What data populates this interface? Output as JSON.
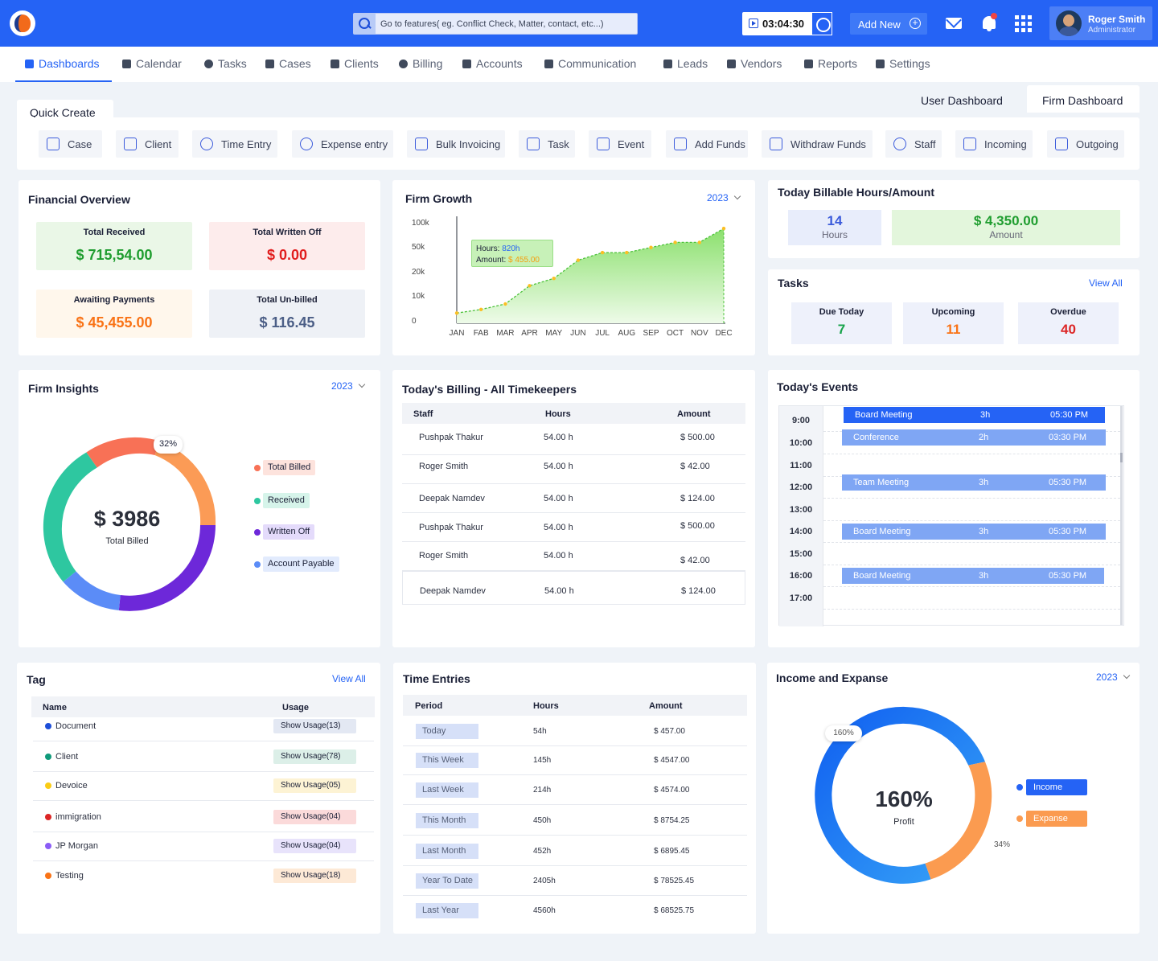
{
  "header": {
    "search_placeholder": "Go to features( eg. Conflict Check, Matter, contact, etc...)",
    "timer": "03:04:30",
    "add_new": "Add New",
    "user_name": "Roger Smith",
    "user_role": "Administrator"
  },
  "nav": {
    "items": [
      "Dashboards",
      "Calendar",
      "Tasks",
      "Cases",
      "Clients",
      "Billing",
      "Accounts",
      "Communication",
      "Leads",
      "Vendors",
      "Reports",
      "Settings"
    ]
  },
  "dashboard_tabs": {
    "user": "User Dashboard",
    "firm": "Firm Dashboard"
  },
  "quick_create": {
    "title": "Quick Create",
    "buttons": [
      "Case",
      "Client",
      "Time Entry",
      "Expense entry",
      "Bulk Invoicing",
      "Task",
      "Event",
      "Add Funds",
      "Withdraw Funds",
      "Staff",
      "Incoming",
      "Outgoing"
    ]
  },
  "financial": {
    "title": "Financial Overview",
    "boxes": [
      {
        "label": "Total Received",
        "value": "$ 715,54.00",
        "color": "#1f9d2f",
        "bg": "#eaf7e7"
      },
      {
        "label": "Total Written Off",
        "value": "$ 0.00",
        "color": "#e11d1d",
        "bg": "#fdecec"
      },
      {
        "label": "Awaiting Payments",
        "value": "$ 45,455.00",
        "color": "#f97316",
        "bg": "#fff7ec"
      },
      {
        "label": "Total Un-billed",
        "value": "$ 116.45",
        "color": "#4b5e86",
        "bg": "#eef1f6"
      }
    ]
  },
  "firm_growth": {
    "title": "Firm Growth",
    "year": "2023",
    "tooltip_hours_label": "Hours:",
    "tooltip_hours": "820h",
    "tooltip_amount_label": "Amount:",
    "tooltip_amount": "$ 455.00"
  },
  "chart_data": {
    "type": "area",
    "title": "Firm Growth",
    "y_ticks": [
      "100k",
      "50k",
      "20k",
      "10k",
      "0"
    ],
    "categories": [
      "JAN",
      "FAB",
      "MAR",
      "APR",
      "MAY",
      "JUN",
      "JUL",
      "AUG",
      "SEP",
      "OCT",
      "NOV",
      "DEC"
    ],
    "values": [
      2.8,
      3.8,
      5.3,
      10.3,
      12.3,
      17.3,
      19.4,
      19.4,
      20.8,
      22.2,
      22.2,
      26.0
    ],
    "ylim": [
      0,
      30
    ]
  },
  "billable": {
    "title": "Today Billable Hours/Amount",
    "hours": "14",
    "hours_label": "Hours",
    "amount": "$ 4,350.00",
    "amount_label": "Amount"
  },
  "tasks": {
    "title": "Tasks",
    "view_all": "View All",
    "boxes": [
      {
        "label": "Due Today",
        "value": "7",
        "color": "#16a34a"
      },
      {
        "label": "Upcoming",
        "value": "11",
        "color": "#f97316"
      },
      {
        "label": "Overdue",
        "value": "40",
        "color": "#dc2626"
      }
    ]
  },
  "insights": {
    "title": "Firm Insights",
    "year": "2023",
    "center_value": "$ 3986",
    "center_label": "Total Billed",
    "badge": "32%",
    "legend": [
      {
        "label": "Total Billed",
        "dot": "#f87156",
        "bg": "#fde3dd"
      },
      {
        "label": "Received",
        "dot": "#2ec7a0",
        "bg": "#d6f4ea"
      },
      {
        "label": "Written Off",
        "dot": "#6d28d9",
        "bg": "#e4dbfb"
      },
      {
        "label": "Account Payable",
        "dot": "#5b8cf7",
        "bg": "#e2ebfd"
      }
    ]
  },
  "billing": {
    "title": "Today's Billing - All Timekeepers",
    "headers": [
      "Staff",
      "Hours",
      "Amount"
    ],
    "rows": [
      {
        "staff": "Pushpak Thakur",
        "hours": "54.00 h",
        "amount": "$ 500.00"
      },
      {
        "staff": "Roger Smith",
        "hours": "54.00 h",
        "amount": "$ 42.00"
      },
      {
        "staff": "Deepak Namdev",
        "hours": "54.00 h",
        "amount": "$ 124.00"
      },
      {
        "staff": "Pushpak Thakur",
        "hours": "54.00 h",
        "amount": "$ 500.00"
      },
      {
        "staff": "Roger Smith",
        "hours": "54.00 h",
        "amount": "$ 42.00"
      },
      {
        "staff": "Deepak Namdev",
        "hours": "54.00 h",
        "amount": "$ 124.00"
      }
    ]
  },
  "events": {
    "title": "Today's Events",
    "times": [
      "9:00",
      "10:00",
      "11:00",
      "12:00",
      "13:00",
      "14:00",
      "15:00",
      "16:00",
      "17:00"
    ],
    "items": [
      {
        "name": "Board Meeting",
        "dur": "3h",
        "time": "05:30 PM"
      },
      {
        "name": "Conference",
        "dur": "2h",
        "time": "03:30 PM"
      },
      {
        "name": "Team Meeting",
        "dur": "3h",
        "time": "05:30 PM"
      },
      {
        "name": "Board Meeting",
        "dur": "3h",
        "time": "05:30 PM"
      },
      {
        "name": "Board Meeting",
        "dur": "3h",
        "time": "05:30 PM"
      }
    ]
  },
  "tag": {
    "title": "Tag",
    "view_all": "View All",
    "headers": [
      "Name",
      "Usage"
    ],
    "rows": [
      {
        "name": "Document",
        "usage": "Show Usage(13)",
        "dot": "#1d4ed8",
        "bg": "#e3e8f3"
      },
      {
        "name": "Client",
        "usage": "Show Usage(78)",
        "dot": "#0f9a7a",
        "bg": "#dcefe8"
      },
      {
        "name": "Devoice",
        "usage": "Show Usage(05)",
        "dot": "#facc15",
        "bg": "#fdf3d4"
      },
      {
        "name": "immigration",
        "usage": "Show Usage(04)",
        "dot": "#dc2626",
        "bg": "#fbdada"
      },
      {
        "name": "JP Morgan",
        "usage": "Show Usage(04)",
        "dot": "#8b5cf6",
        "bg": "#e8e3fb"
      },
      {
        "name": "Testing",
        "usage": "Show Usage(18)",
        "dot": "#f97316",
        "bg": "#fde9d6"
      }
    ]
  },
  "time_entries": {
    "title": "Time Entries",
    "headers": [
      "Period",
      "Hours",
      "Amount"
    ],
    "rows": [
      {
        "period": "Today",
        "hours": "54h",
        "amount": "$ 457.00"
      },
      {
        "period": "This Week",
        "hours": "145h",
        "amount": "$ 4547.00"
      },
      {
        "period": "Last Week",
        "hours": "214h",
        "amount": "$ 4574.00"
      },
      {
        "period": "This Month",
        "hours": "450h",
        "amount": "$ 8754.25"
      },
      {
        "period": "Last Month",
        "hours": "452h",
        "amount": "$ 6895.45"
      },
      {
        "period": "Year To Date",
        "hours": "2405h",
        "amount": "$ 78525.45"
      },
      {
        "period": "Last Year",
        "hours": "4560h",
        "amount": "$ 68525.75"
      }
    ]
  },
  "income": {
    "title": "Income and Expanse",
    "year": "2023",
    "center_value": "160%",
    "center_label": "Profit",
    "badge_top": "160%",
    "badge_bottom": "34%",
    "legend": [
      {
        "label": "Income",
        "color": "#2563f5"
      },
      {
        "label": "Expanse",
        "color": "#fb9b50"
      }
    ]
  }
}
